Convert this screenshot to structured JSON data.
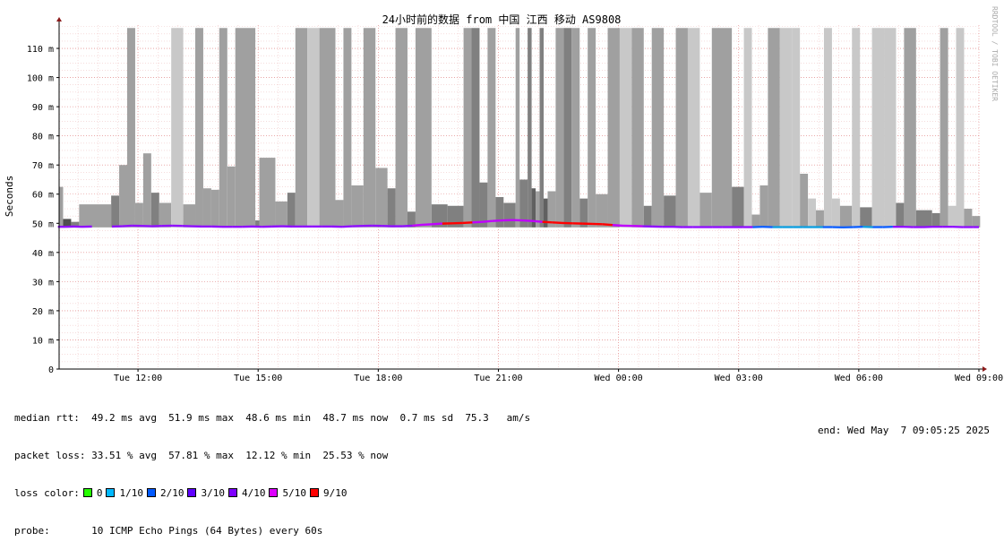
{
  "chart_data": {
    "type": "bar",
    "title": "24小时前的数据 from 中国 江西 移动 AS9808",
    "ylabel": "Seconds",
    "watermark": "RRDTOOL / TOBI OETIKER",
    "ylim": [
      0,
      0.118
    ],
    "y_ticks": [
      {
        "v": 0,
        "label": "0"
      },
      {
        "v": 0.01,
        "label": "10 m"
      },
      {
        "v": 0.02,
        "label": "20 m"
      },
      {
        "v": 0.03,
        "label": "30 m"
      },
      {
        "v": 0.04,
        "label": "40 m"
      },
      {
        "v": 0.05,
        "label": "50 m"
      },
      {
        "v": 0.06,
        "label": "60 m"
      },
      {
        "v": 0.07,
        "label": "70 m"
      },
      {
        "v": 0.08,
        "label": "80 m"
      },
      {
        "v": 0.09,
        "label": "90 m"
      },
      {
        "v": 0.1,
        "label": "100 m"
      },
      {
        "v": 0.11,
        "label": "110 m"
      }
    ],
    "x_ticks": [
      {
        "t": 12,
        "label": "Tue 12:00"
      },
      {
        "t": 15,
        "label": "Tue 15:00"
      },
      {
        "t": 18,
        "label": "Tue 18:00"
      },
      {
        "t": 21,
        "label": "Tue 21:00"
      },
      {
        "t": 24,
        "label": "Wed 00:00"
      },
      {
        "t": 27,
        "label": "Wed 03:00"
      },
      {
        "t": 30,
        "label": "Wed 06:00"
      },
      {
        "t": 33,
        "label": "Wed 09:00"
      }
    ],
    "xlim": [
      10.03,
      33.0
    ],
    "median_rtt_loss": [
      [
        10.0,
        0.0488,
        "#9010ff"
      ],
      [
        10.2,
        0.0488,
        "#9010ff"
      ],
      [
        10.4,
        0.0489,
        "#9010ff"
      ],
      [
        10.6,
        0.0488,
        "#9010ff"
      ],
      [
        10.85,
        0.0489,
        "#9010ff"
      ],
      [
        11.35,
        0.0489,
        "#9010ff"
      ],
      [
        11.6,
        0.049,
        "#9010ff"
      ],
      [
        11.85,
        0.0492,
        "#9010ff"
      ],
      [
        12.1,
        0.0491,
        "#9010ff"
      ],
      [
        12.35,
        0.049,
        "#9010ff"
      ],
      [
        12.6,
        0.0491,
        "#9010ff"
      ],
      [
        12.85,
        0.0492,
        "#9010ff"
      ],
      [
        13.1,
        0.0491,
        "#9010ff"
      ],
      [
        13.35,
        0.049,
        "#9010ff"
      ],
      [
        13.6,
        0.0489,
        "#9010ff"
      ],
      [
        13.85,
        0.0489,
        "#9010ff"
      ],
      [
        14.1,
        0.0488,
        "#9010ff"
      ],
      [
        14.35,
        0.0488,
        "#9010ff"
      ],
      [
        14.6,
        0.0488,
        "#9010ff"
      ],
      [
        14.85,
        0.0489,
        "#9010ff"
      ],
      [
        15.1,
        0.0488,
        "#9010ff"
      ],
      [
        15.35,
        0.0489,
        "#9010ff"
      ],
      [
        15.6,
        0.049,
        "#9010ff"
      ],
      [
        15.85,
        0.0489,
        "#9010ff"
      ],
      [
        16.1,
        0.0489,
        "#9010ff"
      ],
      [
        16.35,
        0.0489,
        "#9010ff"
      ],
      [
        16.6,
        0.0489,
        "#9010ff"
      ],
      [
        16.85,
        0.0489,
        "#9010ff"
      ],
      [
        17.1,
        0.0488,
        "#9010ff"
      ],
      [
        17.35,
        0.049,
        "#9010ff"
      ],
      [
        17.6,
        0.0491,
        "#9010ff"
      ],
      [
        17.85,
        0.0492,
        "#9010ff"
      ],
      [
        18.1,
        0.0491,
        "#9010ff"
      ],
      [
        18.35,
        0.049,
        "#9010ff"
      ],
      [
        18.6,
        0.049,
        "#9010ff"
      ],
      [
        18.85,
        0.0492,
        "#c000ff"
      ],
      [
        19.1,
        0.0495,
        "#c000ff"
      ],
      [
        19.35,
        0.0497,
        "#c000ff"
      ],
      [
        19.6,
        0.0499,
        "#ff0000"
      ],
      [
        19.85,
        0.05,
        "#ff0000"
      ],
      [
        20.1,
        0.0501,
        "#ff0000"
      ],
      [
        20.35,
        0.0503,
        "#c000ff"
      ],
      [
        20.6,
        0.0505,
        "#c000ff"
      ],
      [
        20.85,
        0.0508,
        "#c000ff"
      ],
      [
        21.1,
        0.051,
        "#c000ff"
      ],
      [
        21.35,
        0.0511,
        "#c000ff"
      ],
      [
        21.6,
        0.051,
        "#c000ff"
      ],
      [
        21.85,
        0.0508,
        "#c000ff"
      ],
      [
        22.1,
        0.0505,
        "#ff0000"
      ],
      [
        22.35,
        0.0503,
        "#ff0000"
      ],
      [
        22.6,
        0.0501,
        "#ff0000"
      ],
      [
        22.85,
        0.05,
        "#ff0000"
      ],
      [
        23.1,
        0.0499,
        "#ff0000"
      ],
      [
        23.35,
        0.0498,
        "#ff0000"
      ],
      [
        23.6,
        0.0497,
        "#ff0000"
      ],
      [
        23.85,
        0.0494,
        "#c000ff"
      ],
      [
        24.1,
        0.0492,
        "#c000ff"
      ],
      [
        24.35,
        0.0491,
        "#c000ff"
      ],
      [
        24.6,
        0.049,
        "#9010ff"
      ],
      [
        24.85,
        0.0489,
        "#9010ff"
      ],
      [
        25.1,
        0.0488,
        "#9010ff"
      ],
      [
        25.35,
        0.0488,
        "#9010ff"
      ],
      [
        25.6,
        0.0487,
        "#9010ff"
      ],
      [
        25.85,
        0.0487,
        "#9010ff"
      ],
      [
        26.1,
        0.0487,
        "#9010ff"
      ],
      [
        26.35,
        0.0487,
        "#9010ff"
      ],
      [
        26.6,
        0.0487,
        "#9010ff"
      ],
      [
        26.85,
        0.0487,
        "#9010ff"
      ],
      [
        27.1,
        0.0487,
        "#9010ff"
      ],
      [
        27.35,
        0.0487,
        "#1060ff"
      ],
      [
        27.6,
        0.0488,
        "#1060ff"
      ],
      [
        27.85,
        0.0487,
        "#10a0e0"
      ],
      [
        28.1,
        0.0487,
        "#10a0e0"
      ],
      [
        28.35,
        0.0487,
        "#10a0e0"
      ],
      [
        28.6,
        0.0487,
        "#10a0e0"
      ],
      [
        28.85,
        0.0487,
        "#10a0e0"
      ],
      [
        29.1,
        0.0487,
        "#1060ff"
      ],
      [
        29.35,
        0.0487,
        "#1060ff"
      ],
      [
        29.6,
        0.0486,
        "#1060ff"
      ],
      [
        29.85,
        0.0487,
        "#1060ff"
      ],
      [
        30.1,
        0.0488,
        "#10a0e0"
      ],
      [
        30.35,
        0.0487,
        "#1060ff"
      ],
      [
        30.6,
        0.0487,
        "#1060ff"
      ],
      [
        30.85,
        0.0488,
        "#9010ff"
      ],
      [
        31.1,
        0.0488,
        "#9010ff"
      ],
      [
        31.35,
        0.0487,
        "#9010ff"
      ],
      [
        31.6,
        0.0487,
        "#9010ff"
      ],
      [
        31.85,
        0.0488,
        "#9010ff"
      ],
      [
        32.1,
        0.0488,
        "#9010ff"
      ],
      [
        32.35,
        0.0488,
        "#9010ff"
      ],
      [
        32.6,
        0.0487,
        "#9010ff"
      ],
      [
        32.85,
        0.0487,
        "#9010ff"
      ],
      [
        33.0,
        0.0487,
        "#9010ff"
      ]
    ],
    "smoke_columns": [
      [
        10.03,
        0.0625,
        "#a0a0a0"
      ],
      [
        10.13,
        0.0515,
        "#505050"
      ],
      [
        10.33,
        0.0505,
        "#808080"
      ],
      [
        10.53,
        0.0565,
        "#a0a0a0"
      ],
      [
        11.33,
        0.0595,
        "#808080"
      ],
      [
        11.53,
        0.07,
        "#a0a0a0"
      ],
      [
        11.73,
        0.117,
        "#a0a0a0"
      ],
      [
        11.93,
        0.057,
        "#a0a0a0"
      ],
      [
        12.13,
        0.074,
        "#a0a0a0"
      ],
      [
        12.33,
        0.0605,
        "#808080"
      ],
      [
        12.53,
        0.057,
        "#a0a0a0"
      ],
      [
        12.83,
        0.117,
        "#c8c8c8"
      ],
      [
        13.13,
        0.0565,
        "#a0a0a0"
      ],
      [
        13.43,
        0.117,
        "#a0a0a0"
      ],
      [
        13.63,
        0.062,
        "#a0a0a0"
      ],
      [
        13.83,
        0.0615,
        "#a0a0a0"
      ],
      [
        14.03,
        0.117,
        "#a0a0a0"
      ],
      [
        14.23,
        0.0695,
        "#a0a0a0"
      ],
      [
        14.43,
        0.117,
        "#a0a0a0"
      ],
      [
        14.93,
        0.051,
        "#808080"
      ],
      [
        15.03,
        0.0725,
        "#a0a0a0"
      ],
      [
        15.43,
        0.0575,
        "#a0a0a0"
      ],
      [
        15.73,
        0.0605,
        "#808080"
      ],
      [
        15.93,
        0.117,
        "#a0a0a0"
      ],
      [
        16.23,
        0.117,
        "#c8c8c8"
      ],
      [
        16.53,
        0.117,
        "#a0a0a0"
      ],
      [
        16.93,
        0.058,
        "#a0a0a0"
      ],
      [
        17.13,
        0.117,
        "#a0a0a0"
      ],
      [
        17.33,
        0.063,
        "#a0a0a0"
      ],
      [
        17.63,
        0.117,
        "#a0a0a0"
      ],
      [
        17.93,
        0.069,
        "#a0a0a0"
      ],
      [
        18.23,
        0.062,
        "#808080"
      ],
      [
        18.43,
        0.117,
        "#a0a0a0"
      ],
      [
        18.73,
        0.054,
        "#808080"
      ],
      [
        18.93,
        0.117,
        "#a0a0a0"
      ],
      [
        19.33,
        0.0565,
        "#808080"
      ],
      [
        19.73,
        0.056,
        "#808080"
      ],
      [
        20.13,
        0.117,
        "#a0a0a0"
      ],
      [
        20.33,
        0.117,
        "#808080"
      ],
      [
        20.53,
        0.064,
        "#808080"
      ],
      [
        20.73,
        0.117,
        "#a0a0a0"
      ],
      [
        20.93,
        0.059,
        "#808080"
      ],
      [
        21.13,
        0.057,
        "#808080"
      ],
      [
        21.43,
        0.117,
        "#a0a0a0"
      ],
      [
        21.53,
        0.065,
        "#808080"
      ],
      [
        21.73,
        0.117,
        "#808080"
      ],
      [
        21.83,
        0.062,
        "#606060"
      ],
      [
        21.93,
        0.061,
        "#a0a0a0"
      ],
      [
        22.03,
        0.117,
        "#808080"
      ],
      [
        22.13,
        0.0585,
        "#606060"
      ],
      [
        22.23,
        0.061,
        "#a0a0a0"
      ],
      [
        22.43,
        0.117,
        "#a0a0a0"
      ],
      [
        22.63,
        0.117,
        "#808080"
      ],
      [
        22.83,
        0.117,
        "#a0a0a0"
      ],
      [
        23.03,
        0.0585,
        "#808080"
      ],
      [
        23.23,
        0.117,
        "#a0a0a0"
      ],
      [
        23.43,
        0.06,
        "#a0a0a0"
      ],
      [
        23.73,
        0.117,
        "#a0a0a0"
      ],
      [
        24.03,
        0.117,
        "#c8c8c8"
      ],
      [
        24.33,
        0.117,
        "#a0a0a0"
      ],
      [
        24.63,
        0.056,
        "#808080"
      ],
      [
        24.83,
        0.117,
        "#a0a0a0"
      ],
      [
        25.13,
        0.0595,
        "#808080"
      ],
      [
        25.43,
        0.117,
        "#a0a0a0"
      ],
      [
        25.73,
        0.117,
        "#c8c8c8"
      ],
      [
        26.03,
        0.0605,
        "#a0a0a0"
      ],
      [
        26.33,
        0.117,
        "#a0a0a0"
      ],
      [
        26.83,
        0.0625,
        "#808080"
      ],
      [
        27.13,
        0.117,
        "#c8c8c8"
      ],
      [
        27.33,
        0.053,
        "#a0a0a0"
      ],
      [
        27.53,
        0.063,
        "#a0a0a0"
      ],
      [
        27.73,
        0.117,
        "#a0a0a0"
      ],
      [
        28.03,
        0.117,
        "#c8c8c8"
      ],
      [
        28.33,
        0.117,
        "#c8c8c8"
      ],
      [
        28.53,
        0.067,
        "#a0a0a0"
      ],
      [
        28.73,
        0.0585,
        "#c8c8c8"
      ],
      [
        28.93,
        0.0545,
        "#a0a0a0"
      ],
      [
        29.13,
        0.117,
        "#c8c8c8"
      ],
      [
        29.33,
        0.0585,
        "#c8c8c8"
      ],
      [
        29.53,
        0.056,
        "#a0a0a0"
      ],
      [
        29.83,
        0.117,
        "#c8c8c8"
      ],
      [
        30.03,
        0.0555,
        "#808080"
      ],
      [
        30.33,
        0.117,
        "#c8c8c8"
      ],
      [
        30.63,
        0.117,
        "#c8c8c8"
      ],
      [
        30.93,
        0.057,
        "#808080"
      ],
      [
        31.13,
        0.117,
        "#a0a0a0"
      ],
      [
        31.43,
        0.0545,
        "#808080"
      ],
      [
        31.83,
        0.0535,
        "#808080"
      ],
      [
        32.03,
        0.117,
        "#a0a0a0"
      ],
      [
        32.23,
        0.056,
        "#c8c8c8"
      ],
      [
        32.43,
        0.117,
        "#c8c8c8"
      ],
      [
        32.63,
        0.055,
        "#a0a0a0"
      ],
      [
        32.83,
        0.0525,
        "#a0a0a0"
      ]
    ]
  },
  "stats": {
    "median_rtt": "median rtt:  49.2 ms avg  51.9 ms max  48.6 ms min  48.7 ms now  0.7 ms sd  75.3   am/s",
    "packet_loss": "packet loss: 33.51 % avg  57.81 % max  12.12 % min  25.53 % now",
    "loss_color_label": "loss color:",
    "loss_colors": [
      {
        "label": "0",
        "color": "#26ff00"
      },
      {
        "label": "1/10",
        "color": "#00b8ff"
      },
      {
        "label": "2/10",
        "color": "#0059ff"
      },
      {
        "label": "3/10",
        "color": "#5e00ff"
      },
      {
        "label": "4/10",
        "color": "#7e00ff"
      },
      {
        "label": "5/10",
        "color": "#dd00ff"
      },
      {
        "label": "9/10",
        "color": "#ff0000"
      }
    ],
    "probe_label": "probe:",
    "probe": "10 ICMP Echo Pings (64 Bytes) every 60s",
    "end": "end: Wed May  7 09:05:25 2025"
  }
}
